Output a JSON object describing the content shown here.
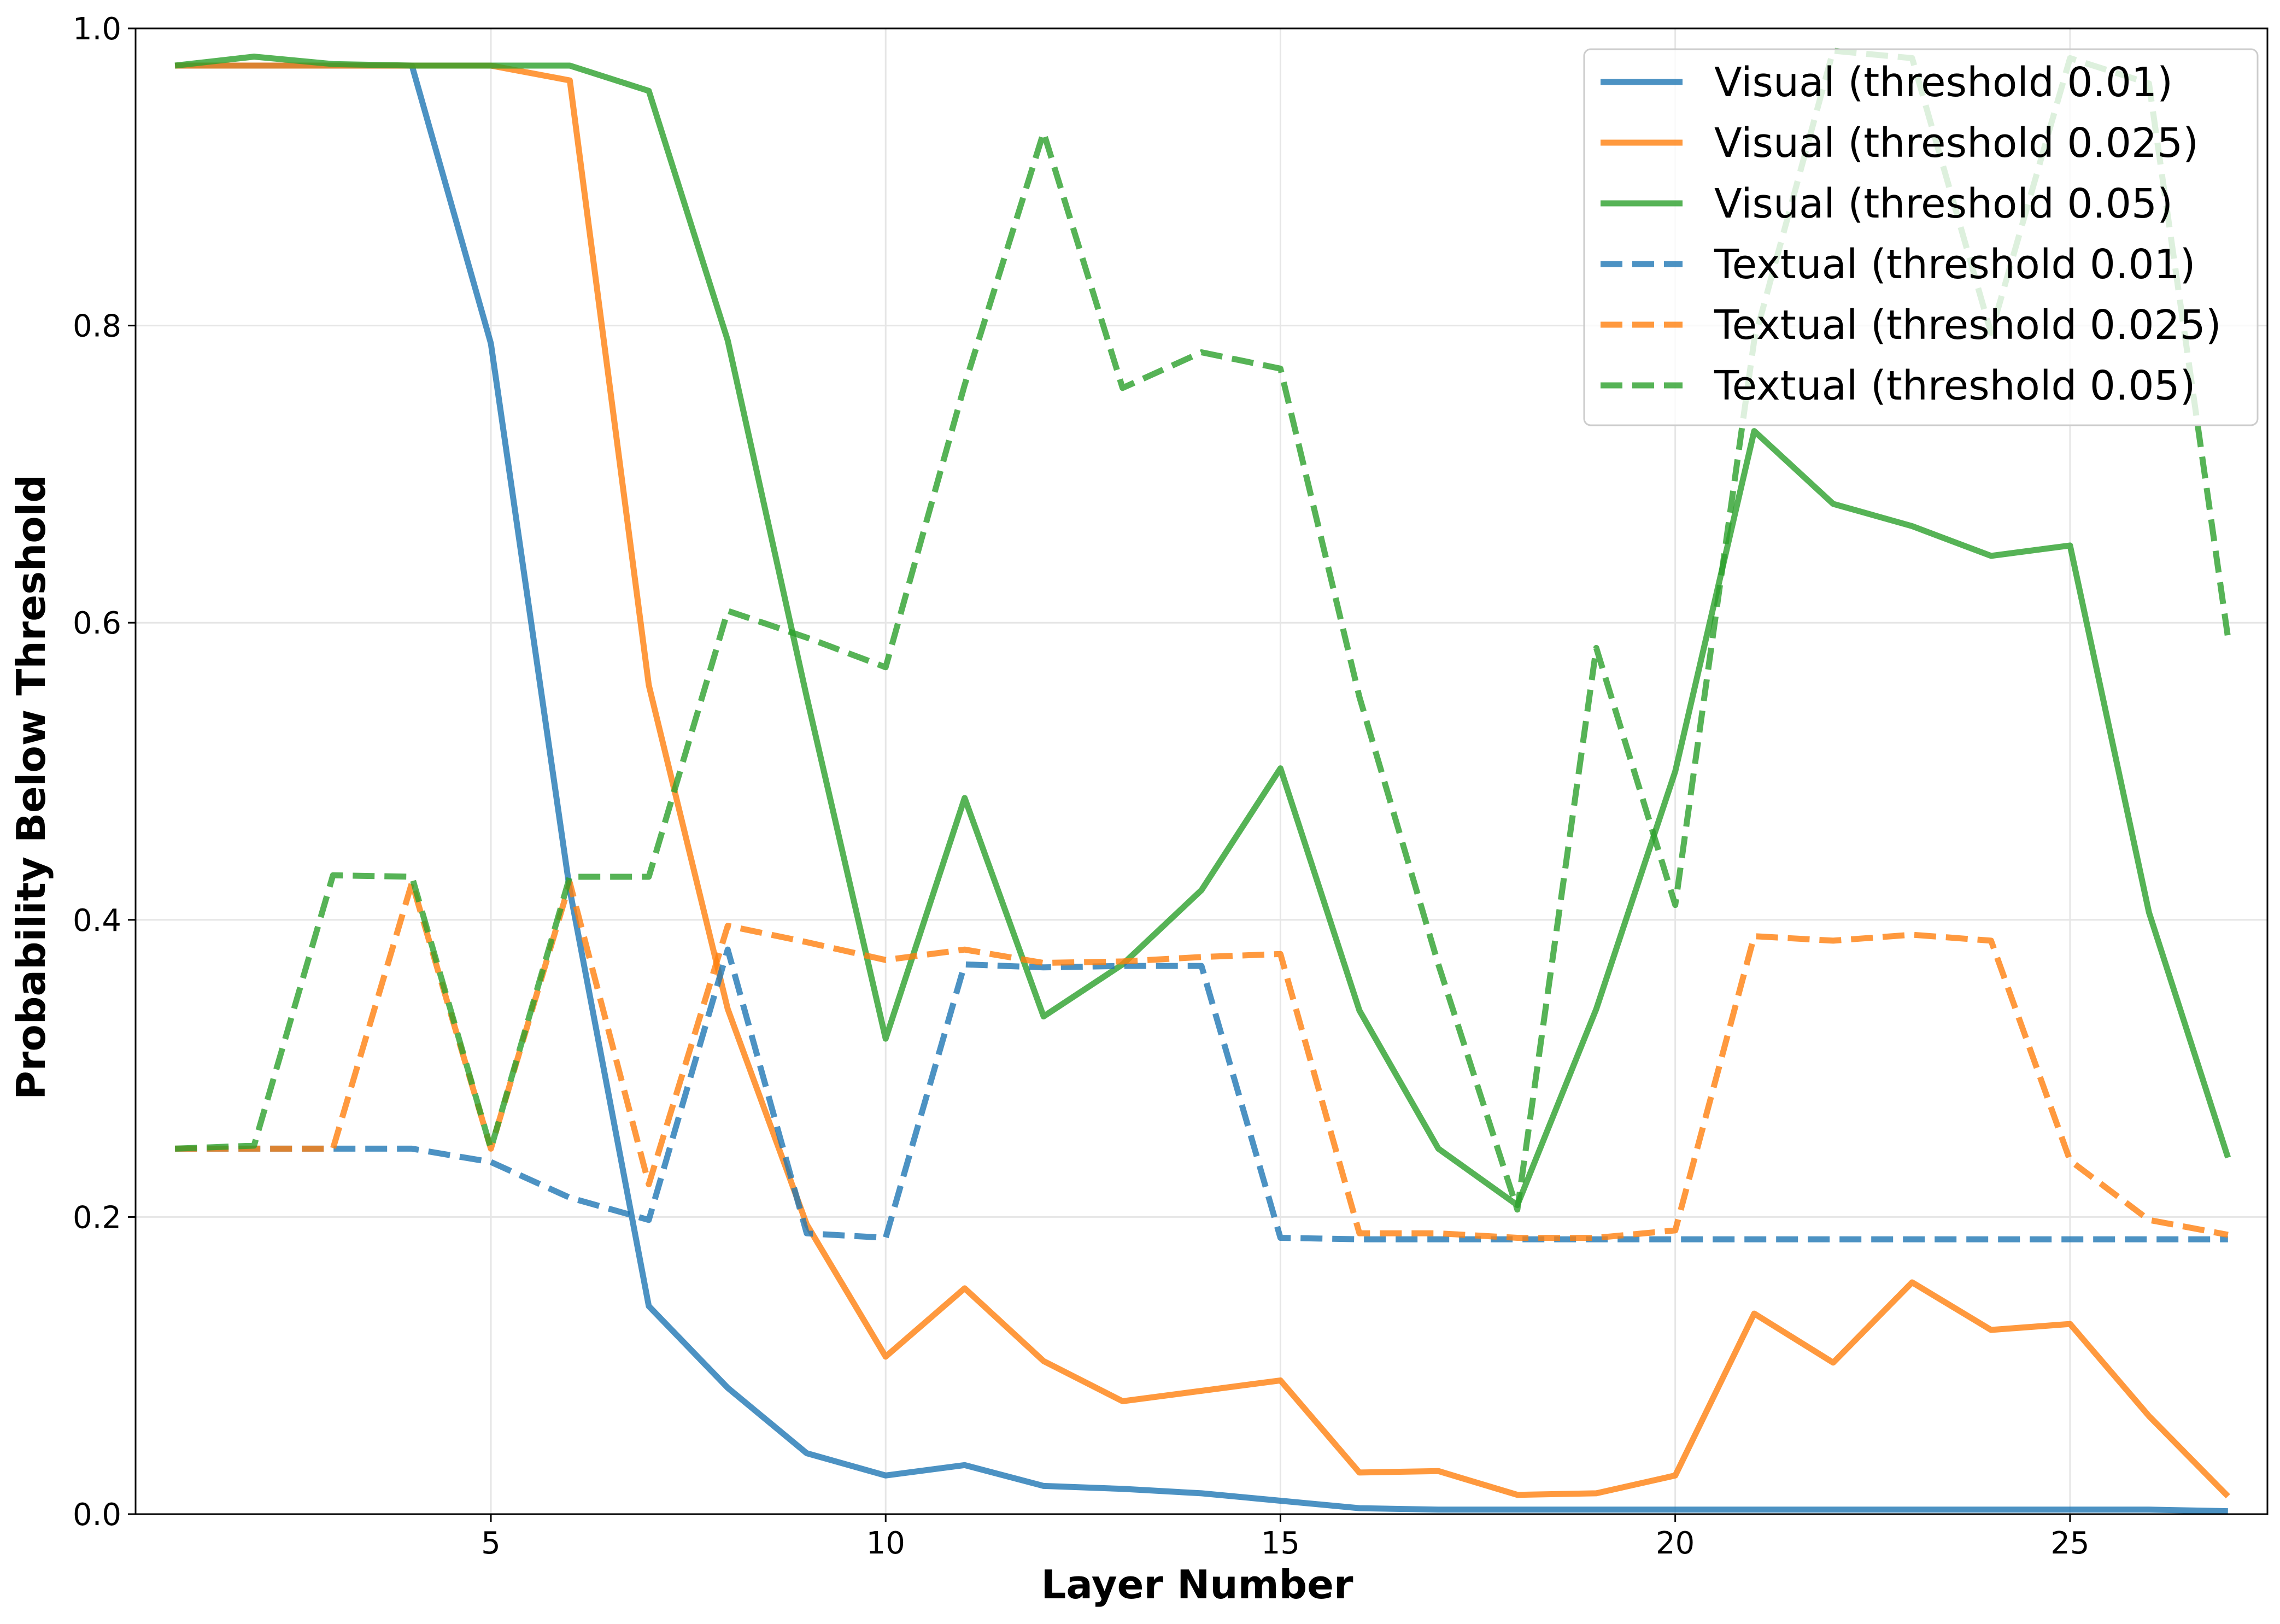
{
  "chart_data": {
    "type": "line",
    "title": "",
    "xlabel": "Layer Number",
    "ylabel": "Probability Below Threshold",
    "xlim": [
      0.5,
      27.5
    ],
    "ylim": [
      0.0,
      1.0
    ],
    "xticks": [
      5,
      10,
      15,
      20,
      25
    ],
    "yticks": [
      0.0,
      0.2,
      0.4,
      0.6,
      0.8,
      1.0
    ],
    "ytick_labels": [
      "0.0",
      "0.2",
      "0.4",
      "0.6",
      "0.8",
      "1.0"
    ],
    "grid": true,
    "legend_position": "top-right",
    "x": [
      1,
      2,
      3,
      4,
      5,
      6,
      7,
      8,
      9,
      10,
      11,
      12,
      13,
      14,
      15,
      16,
      17,
      18,
      19,
      20,
      21,
      22,
      23,
      24,
      25,
      26,
      27
    ],
    "series": [
      {
        "name": "Visual (threshold 0.01)",
        "color": "#1f77b4",
        "style": "solid",
        "values": [
          0.975,
          0.975,
          0.975,
          0.975,
          0.788,
          0.42,
          0.14,
          0.085,
          0.041,
          0.026,
          0.033,
          0.019,
          0.017,
          0.014,
          0.009,
          0.004,
          0.003,
          0.003,
          0.003,
          0.003,
          0.003,
          0.003,
          0.003,
          0.003,
          0.003,
          0.003,
          0.002
        ]
      },
      {
        "name": "Visual (threshold 0.025)",
        "color": "#ff7f0e",
        "style": "solid",
        "values": [
          0.975,
          0.975,
          0.975,
          0.975,
          0.975,
          0.965,
          0.558,
          0.34,
          0.195,
          0.106,
          0.152,
          0.103,
          0.076,
          0.083,
          0.09,
          0.028,
          0.029,
          0.013,
          0.014,
          0.026,
          0.135,
          0.102,
          0.156,
          0.124,
          0.128,
          0.066,
          0.012
        ]
      },
      {
        "name": "Visual (threshold 0.05)",
        "color": "#2ca02c",
        "style": "solid",
        "values": [
          0.975,
          0.981,
          0.976,
          0.975,
          0.975,
          0.975,
          0.958,
          0.79,
          0.55,
          0.32,
          0.482,
          0.335,
          0.37,
          0.42,
          0.502,
          0.339,
          0.246,
          0.208,
          0.34,
          0.5,
          0.729,
          0.68,
          0.665,
          0.645,
          0.652,
          0.405,
          0.24
        ]
      },
      {
        "name": "Textual (threshold 0.01)",
        "color": "#1f77b4",
        "style": "dashed",
        "values": [
          0.246,
          0.246,
          0.246,
          0.246,
          0.237,
          0.213,
          0.198,
          0.38,
          0.189,
          0.186,
          0.37,
          0.368,
          0.369,
          0.369,
          0.186,
          0.185,
          0.185,
          0.185,
          0.185,
          0.185,
          0.185,
          0.185,
          0.185,
          0.185,
          0.185,
          0.185,
          0.185
        ]
      },
      {
        "name": "Textual (threshold 0.025)",
        "color": "#ff7f0e",
        "style": "dashed",
        "values": [
          0.246,
          0.246,
          0.246,
          0.425,
          0.246,
          0.425,
          0.222,
          0.396,
          0.385,
          0.373,
          0.38,
          0.371,
          0.372,
          0.375,
          0.377,
          0.189,
          0.189,
          0.186,
          0.186,
          0.191,
          0.389,
          0.386,
          0.39,
          0.386,
          0.238,
          0.198,
          0.188
        ]
      },
      {
        "name": "Textual (threshold 0.05)",
        "color": "#2ca02c",
        "style": "dashed",
        "values": [
          0.246,
          0.248,
          0.43,
          0.429,
          0.246,
          0.429,
          0.429,
          0.608,
          0.59,
          0.57,
          0.76,
          0.93,
          0.758,
          0.782,
          0.771,
          0.55,
          0.37,
          0.205,
          0.583,
          0.41,
          0.79,
          0.985,
          0.98,
          0.795,
          0.98,
          0.963,
          0.59
        ]
      }
    ]
  }
}
